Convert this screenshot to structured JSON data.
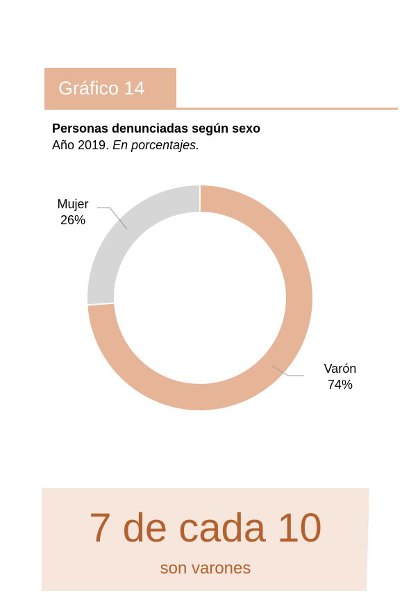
{
  "header": {
    "label": "Gráfico 14",
    "accent": "#e6b496"
  },
  "chart_data": {
    "type": "pie",
    "title": "Personas denunciadas según sexo",
    "subtitle_plain": "Año 2019.",
    "subtitle_italic": "En porcentajes.",
    "slices": [
      {
        "label": "Varón",
        "value": 74,
        "value_label": "74%",
        "color": "#e6b496"
      },
      {
        "label": "Mujer",
        "value": 26,
        "value_label": "26%",
        "color": "#d6d6d6"
      }
    ]
  },
  "callout": {
    "headline": "7 de cada 10",
    "subline": "son varones",
    "background": "#f6e6dc",
    "text_color": "#b4612e"
  }
}
